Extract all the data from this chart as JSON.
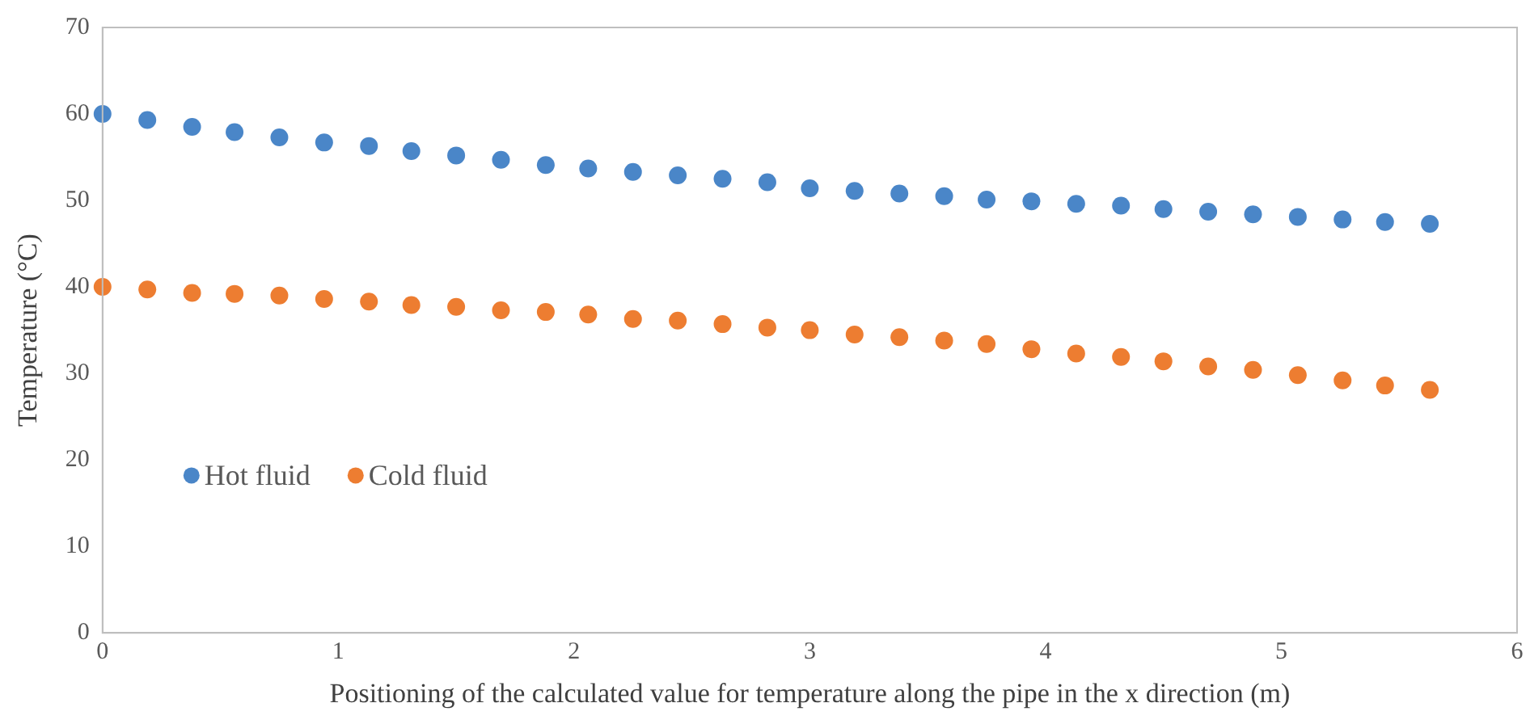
{
  "chart_data": {
    "type": "scatter",
    "xlabel": "Positioning of the calculated value for temperature along the pipe in the x direction (m)",
    "ylabel": "Temperature (°C)",
    "x": [
      0,
      0.19,
      0.38,
      0.56,
      0.75,
      0.94,
      1.13,
      1.31,
      1.5,
      1.69,
      1.88,
      2.06,
      2.25,
      2.44,
      2.63,
      2.82,
      3,
      3.19,
      3.38,
      3.57,
      3.75,
      3.94,
      4.13,
      4.32,
      4.5,
      4.69,
      4.88,
      5.07,
      5.26,
      5.44,
      5.63
    ],
    "series": [
      {
        "name": "Hot fluid",
        "color": "#4a86c8",
        "values": [
          60,
          59.3,
          58.5,
          57.9,
          57.3,
          56.7,
          56.3,
          55.7,
          55.2,
          54.7,
          54.1,
          53.7,
          53.3,
          52.9,
          52.5,
          52.1,
          51.4,
          51.1,
          50.8,
          50.5,
          50.1,
          49.9,
          49.6,
          49.4,
          49,
          48.7,
          48.4,
          48.1,
          47.8,
          47.5,
          47.3
        ]
      },
      {
        "name": "Cold fluid",
        "color": "#ed7d31",
        "values": [
          40,
          39.7,
          39.3,
          39.2,
          39,
          38.6,
          38.3,
          37.9,
          37.7,
          37.3,
          37.1,
          36.8,
          36.3,
          36.1,
          35.7,
          35.3,
          35,
          34.5,
          34.2,
          33.8,
          33.4,
          32.8,
          32.3,
          31.9,
          31.4,
          30.8,
          30.4,
          29.8,
          29.2,
          28.6,
          28.1
        ]
      }
    ],
    "xlim": [
      0,
      6
    ],
    "xticks": [
      0,
      1,
      2,
      3,
      4,
      5,
      6
    ],
    "ylim": [
      0,
      70
    ],
    "yticks": [
      0,
      10,
      20,
      30,
      40,
      50,
      60,
      70
    ],
    "grid": false,
    "legend": "bottom left",
    "marker": "circle"
  }
}
